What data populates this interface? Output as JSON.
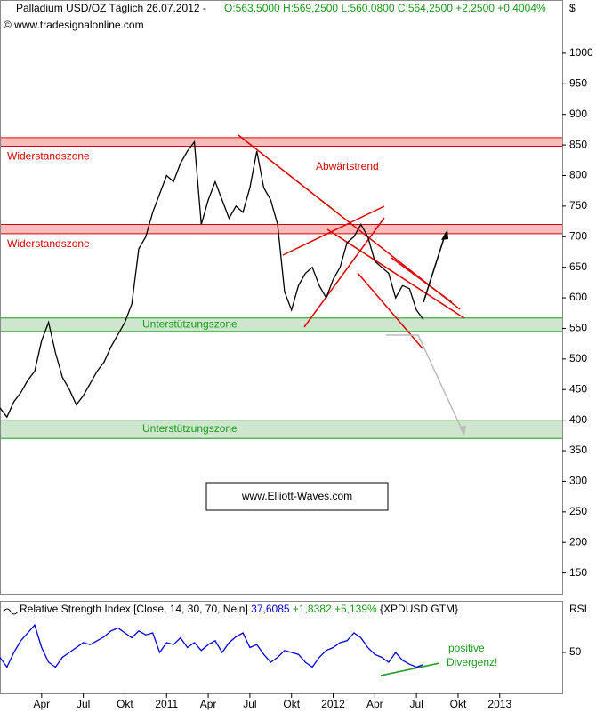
{
  "chart_data": [
    {
      "type": "line",
      "title": "Palladium USD/OZ Täglich 26.07.2012 -",
      "subtitle": "O:563,5000 H:569,2500 L:560,0800 C:564,2500 +2,2500 +0,4004%",
      "source": "© www.tradesignalonline.com",
      "y_unit": "$",
      "color": "#000000",
      "values": [
        420,
        405,
        430,
        445,
        465,
        480,
        530,
        560,
        510,
        470,
        450,
        425,
        440,
        460,
        480,
        495,
        520,
        540,
        560,
        590,
        680,
        700,
        740,
        770,
        800,
        790,
        820,
        840,
        855,
        720,
        760,
        790,
        760,
        730,
        750,
        740,
        780,
        840,
        780,
        760,
        720,
        610,
        580,
        620,
        640,
        650,
        620,
        600,
        630,
        650,
        690,
        700,
        720,
        700,
        660,
        650,
        640,
        600,
        620,
        615,
        580,
        564.25
      ],
      "xlim": [
        0,
        81
      ],
      "ylim": [
        116,
        1058
      ],
      "yticks": [
        150,
        200,
        250,
        300,
        350,
        400,
        450,
        500,
        550,
        600,
        650,
        700,
        750,
        800,
        850,
        900,
        950,
        1000
      ],
      "zones": [
        {
          "label": "Widerstandszone",
          "from": 848,
          "to": 862,
          "color": "#f4a0a0"
        },
        {
          "label": "Widerstandszone",
          "from": 705,
          "to": 720,
          "color": "#f4a0a0"
        },
        {
          "label": "Unterstützungszone",
          "from": 545,
          "to": 567,
          "color": "#b8dcb8"
        },
        {
          "label": "Unterstützungszone",
          "from": 370,
          "to": 400,
          "color": "#b8dcb8"
        }
      ],
      "annotations": [
        "Abwärtstrend",
        "www.Elliott-Waves.com"
      ]
    },
    {
      "type": "line",
      "title": "Relative Strength Index [Close, 14, 30, 70, Nein]",
      "last": "37,6085",
      "change": "+1,8382 +5,139%",
      "symbol": "{XPDUSD GTM}",
      "y_label": "RSI",
      "color": "#0000dd",
      "values": [
        45,
        35,
        50,
        62,
        70,
        78,
        55,
        40,
        35,
        45,
        50,
        55,
        60,
        58,
        62,
        66,
        72,
        75,
        70,
        65,
        72,
        68,
        70,
        50,
        60,
        58,
        65,
        55,
        60,
        52,
        58,
        62,
        50,
        60,
        66,
        70,
        55,
        58,
        48,
        40,
        45,
        52,
        50,
        48,
        40,
        35,
        45,
        52,
        55,
        60,
        62,
        70,
        65,
        55,
        48,
        45,
        40,
        50,
        42,
        38,
        35,
        37.6085
      ],
      "xlim": [
        0,
        81
      ],
      "ylim": [
        10,
        90
      ],
      "yticks": [
        50
      ],
      "xticks": [
        {
          "value": 6,
          "label": "Apr"
        },
        {
          "value": 12,
          "label": "Jul"
        },
        {
          "value": 18,
          "label": "Okt"
        },
        {
          "value": 24,
          "label": "2011"
        },
        {
          "value": 30,
          "label": "Apr"
        },
        {
          "value": 36,
          "label": "Jul"
        },
        {
          "value": 42,
          "label": "Okt"
        },
        {
          "value": 48,
          "label": "2012"
        },
        {
          "value": 54,
          "label": "Apr"
        },
        {
          "value": 60,
          "label": "Jul"
        },
        {
          "value": 66,
          "label": "Okt"
        },
        {
          "value": 72,
          "label": "2013"
        }
      ],
      "annotations": [
        "positive",
        "Divergenz!"
      ]
    }
  ]
}
